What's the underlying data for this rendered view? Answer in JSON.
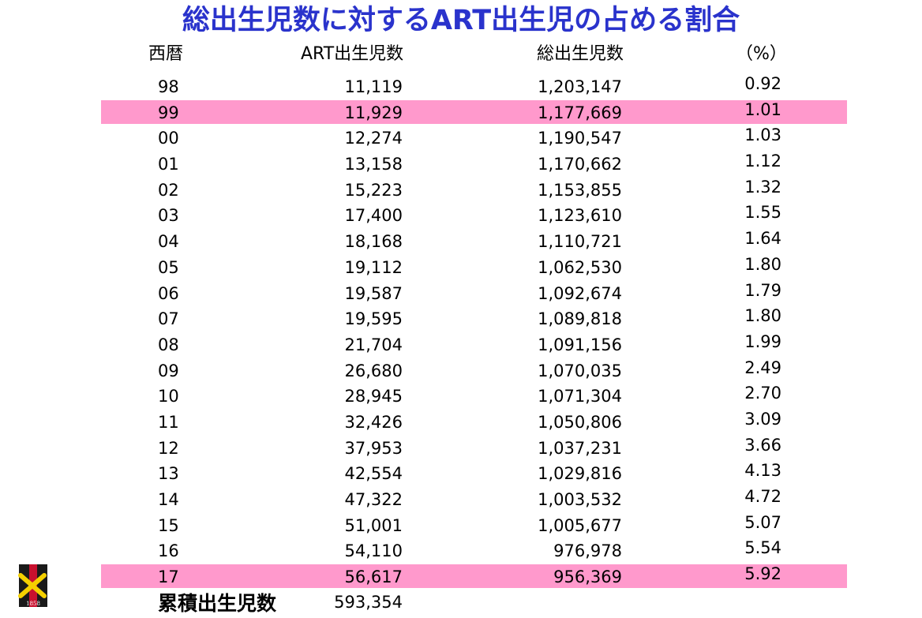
{
  "title": "総出生児数に対するART出生児の占める割合",
  "colors": {
    "title": "#2a33cc",
    "highlight": "#ff99cc",
    "text": "#000000"
  },
  "headers": {
    "year": "西暦",
    "art_births": "ART出生児数",
    "total_births": "総出生児数",
    "percent": "（%）"
  },
  "rows": [
    {
      "year": "98",
      "art": "11,119",
      "total": "1,203,147",
      "pct": "0.92",
      "highlight": false
    },
    {
      "year": "99",
      "art": "11,929",
      "total": "1,177,669",
      "pct": "1.01",
      "highlight": true
    },
    {
      "year": "00",
      "art": "12,274",
      "total": "1,190,547",
      "pct": "1.03",
      "highlight": false
    },
    {
      "year": "01",
      "art": "13,158",
      "total": "1,170,662",
      "pct": "1.12",
      "highlight": false
    },
    {
      "year": "02",
      "art": "15,223",
      "total": "1,153,855",
      "pct": "1.32",
      "highlight": false
    },
    {
      "year": "03",
      "art": "17,400",
      "total": "1,123,610",
      "pct": "1.55",
      "highlight": false
    },
    {
      "year": "04",
      "art": "18,168",
      "total": "1,110,721",
      "pct": "1.64",
      "highlight": false
    },
    {
      "year": "05",
      "art": "19,112",
      "total": "1,062,530",
      "pct": "1.80",
      "highlight": false
    },
    {
      "year": "06",
      "art": "19,587",
      "total": "1,092,674",
      "pct": "1.79",
      "highlight": false
    },
    {
      "year": "07",
      "art": "19,595",
      "total": "1,089,818",
      "pct": "1.80",
      "highlight": false
    },
    {
      "year": "08",
      "art": "21,704",
      "total": "1,091,156",
      "pct": "1.99",
      "highlight": false
    },
    {
      "year": "09",
      "art": "26,680",
      "total": "1,070,035",
      "pct": "2.49",
      "highlight": false
    },
    {
      "year": "10",
      "art": "28,945",
      "total": "1,071,304",
      "pct": "2.70",
      "highlight": false
    },
    {
      "year": "11",
      "art": "32,426",
      "total": "1,050,806",
      "pct": "3.09",
      "highlight": false
    },
    {
      "year": "12",
      "art": "37,953",
      "total": "1,037,231",
      "pct": "3.66",
      "highlight": false
    },
    {
      "year": "13",
      "art": "42,554",
      "total": "1,029,816",
      "pct": "4.13",
      "highlight": false
    },
    {
      "year": "14",
      "art": "47,322",
      "total": "1,003,532",
      "pct": "4.72",
      "highlight": false
    },
    {
      "year": "15",
      "art": "51,001",
      "total": "1,005,677",
      "pct": "5.07",
      "highlight": false
    },
    {
      "year": "16",
      "art": "54,110",
      "total": "976,978",
      "pct": "5.54",
      "highlight": false
    },
    {
      "year": "17",
      "art": "56,617",
      "total": "956,369",
      "pct": "5.92",
      "highlight": true
    }
  ],
  "cumulative": {
    "label": "累積出生児数",
    "value": "593,354"
  },
  "logo": {
    "year_text": "1858"
  }
}
